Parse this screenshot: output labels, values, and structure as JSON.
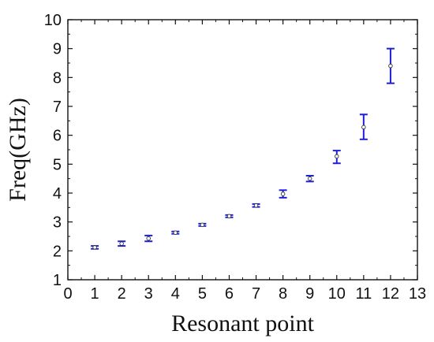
{
  "chart_data": {
    "type": "scatter",
    "title": "",
    "xlabel": "Resonant point",
    "ylabel": "Freq(GHz)",
    "xlim": [
      0,
      13
    ],
    "ylim": [
      1,
      10
    ],
    "grid": false,
    "x_ticks": [
      0,
      1,
      2,
      3,
      4,
      5,
      6,
      7,
      8,
      9,
      10,
      11,
      12,
      13
    ],
    "y_ticks": [
      1,
      2,
      3,
      4,
      5,
      6,
      7,
      8,
      9,
      10
    ],
    "series": [
      {
        "color": "#1f1fd6",
        "marker": "open-circle",
        "points": [
          {
            "x": 1,
            "y": 2.12,
            "err_low": 0.05,
            "err_high": 0.05
          },
          {
            "x": 2,
            "y": 2.25,
            "err_low": 0.08,
            "err_high": 0.08
          },
          {
            "x": 3,
            "y": 2.43,
            "err_low": 0.1,
            "err_high": 0.1
          },
          {
            "x": 4,
            "y": 2.63,
            "err_low": 0.04,
            "err_high": 0.04
          },
          {
            "x": 5,
            "y": 2.9,
            "err_low": 0.04,
            "err_high": 0.04
          },
          {
            "x": 6,
            "y": 3.2,
            "err_low": 0.04,
            "err_high": 0.04
          },
          {
            "x": 7,
            "y": 3.57,
            "err_low": 0.05,
            "err_high": 0.05
          },
          {
            "x": 8,
            "y": 3.97,
            "err_low": 0.13,
            "err_high": 0.13
          },
          {
            "x": 9,
            "y": 4.5,
            "err_low": 0.1,
            "err_high": 0.1
          },
          {
            "x": 10,
            "y": 5.27,
            "err_low": 0.24,
            "err_high": 0.2
          },
          {
            "x": 11,
            "y": 6.28,
            "err_low": 0.42,
            "err_high": 0.44
          },
          {
            "x": 12,
            "y": 8.4,
            "err_low": 0.6,
            "err_high": 0.6
          }
        ]
      }
    ]
  }
}
